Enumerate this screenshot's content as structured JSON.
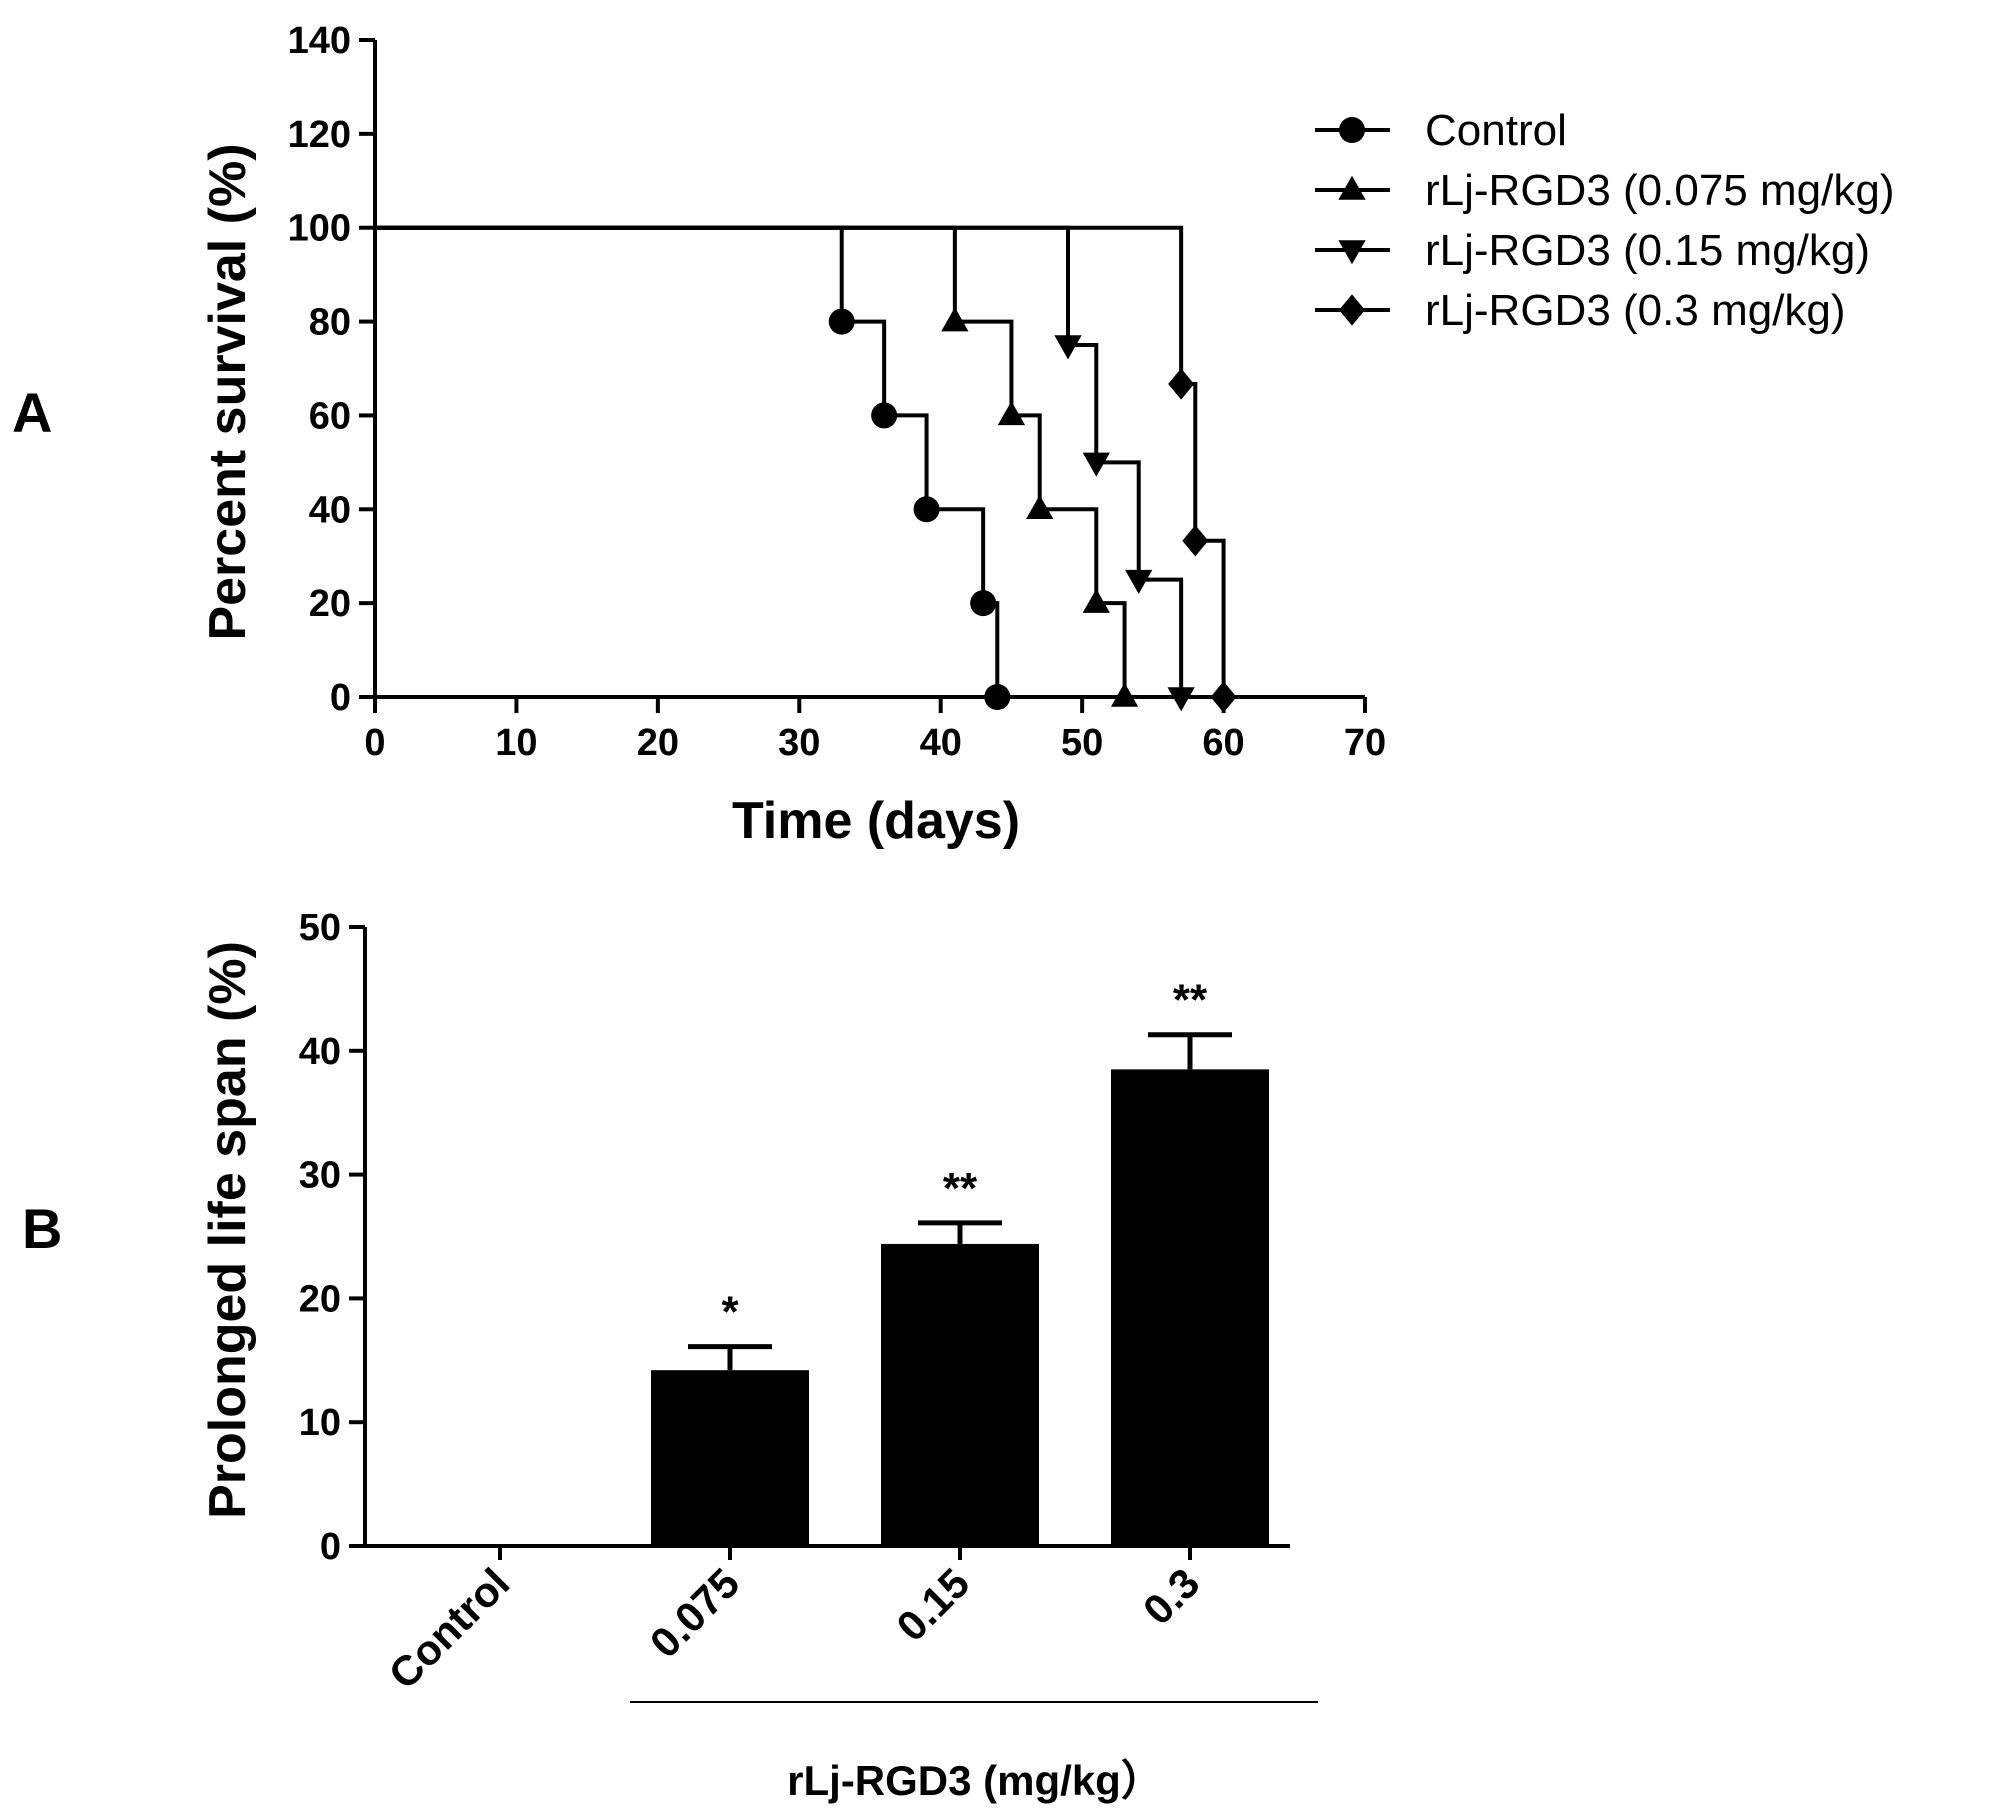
{
  "chart_data": [
    {
      "panel": "A",
      "type": "line",
      "step": true,
      "xlabel": "Time (days)",
      "ylabel": "Percent survival (%)",
      "xlim": [
        0,
        70
      ],
      "ylim": [
        0,
        140
      ],
      "xticks": [
        0,
        10,
        20,
        30,
        40,
        50,
        60,
        70
      ],
      "yticks": [
        0,
        20,
        40,
        60,
        80,
        100,
        120,
        140
      ],
      "legend_position": "top-right",
      "series": [
        {
          "name": "Control",
          "marker": "circle",
          "steps": [
            [
              0,
              100
            ],
            [
              33,
              80
            ],
            [
              36,
              60
            ],
            [
              39,
              40
            ],
            [
              43,
              20
            ],
            [
              44,
              0
            ]
          ]
        },
        {
          "name": "rLj-RGD3 (0.075 mg/kg)",
          "marker": "triangle-up",
          "steps": [
            [
              0,
              100
            ],
            [
              41,
              80
            ],
            [
              45,
              60
            ],
            [
              47,
              40
            ],
            [
              51,
              20
            ],
            [
              53,
              0
            ]
          ]
        },
        {
          "name": "rLj-RGD3 (0.15 mg/kg)",
          "marker": "triangle-down",
          "steps": [
            [
              0,
              100
            ],
            [
              49,
              75
            ],
            [
              51,
              50
            ],
            [
              54,
              25
            ],
            [
              57,
              0
            ]
          ]
        },
        {
          "name": "rLj-RGD3 (0.3 mg/kg)",
          "marker": "diamond",
          "steps": [
            [
              0,
              100
            ],
            [
              57,
              66.7
            ],
            [
              58,
              33.3
            ],
            [
              60,
              0
            ]
          ]
        }
      ],
      "end_x": 70
    },
    {
      "panel": "B",
      "type": "bar",
      "ylabel": "Prolonged life span  (%)",
      "ylim": [
        0,
        50
      ],
      "yticks": [
        0,
        10,
        20,
        30,
        40,
        50
      ],
      "categories": [
        "Control",
        "0.075",
        "0.15",
        "0.3"
      ],
      "values": [
        0,
        14.2,
        24.4,
        38.5
      ],
      "errors": [
        0,
        1.9,
        1.7,
        2.8
      ],
      "significance": [
        "",
        "*",
        "**",
        "**"
      ],
      "group_label": "rLj-RGD3 (mg/kg）",
      "group_categories": [
        1,
        3
      ]
    }
  ]
}
